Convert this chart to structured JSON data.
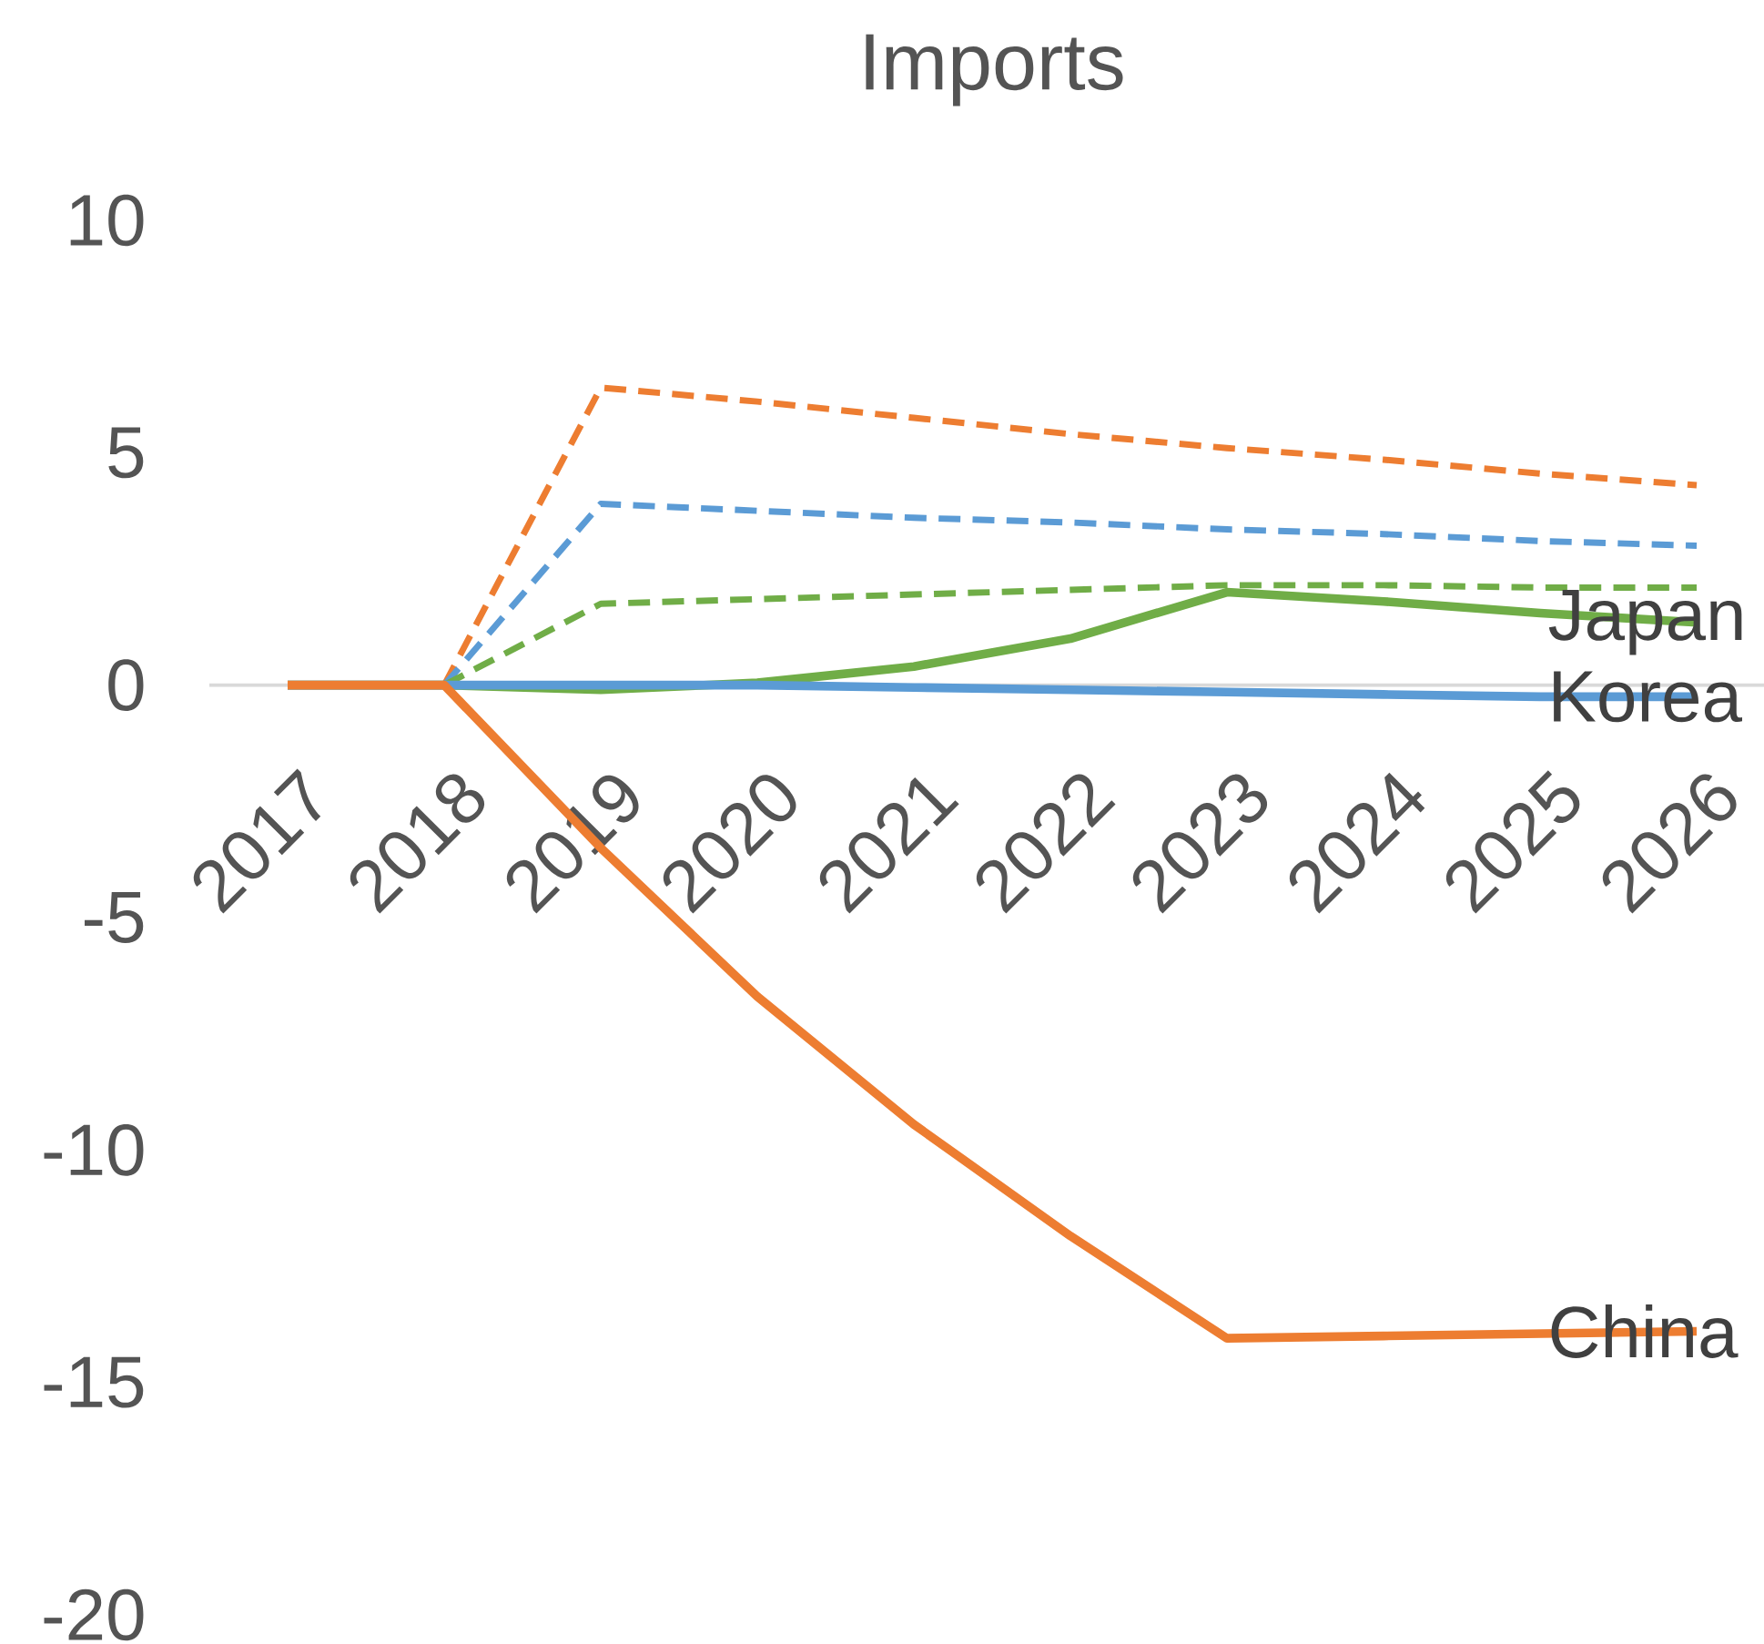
{
  "chart_data": {
    "type": "line",
    "title": "Imports",
    "categories": [
      "2017",
      "2018",
      "2019",
      "2020",
      "2021",
      "2022",
      "2023",
      "2024",
      "2025",
      "2026"
    ],
    "ylim": [
      -20,
      10
    ],
    "yticks": [
      -20,
      -15,
      -10,
      -5,
      0,
      5,
      10
    ],
    "series": [
      {
        "color": "#ed7d31",
        "line_style": "dashed",
        "values": [
          null,
          0,
          6.4,
          6.1,
          5.75,
          5.4,
          5.1,
          4.85,
          4.55,
          4.3
        ]
      },
      {
        "color": "#5b9bd5",
        "line_style": "dashed",
        "values": [
          null,
          0,
          3.9,
          3.75,
          3.6,
          3.5,
          3.35,
          3.25,
          3.1,
          3.0
        ]
      },
      {
        "color": "#70ad47",
        "line_style": "dashed",
        "values": [
          null,
          0,
          1.75,
          1.85,
          1.95,
          2.05,
          2.15,
          2.15,
          2.1,
          2.1
        ]
      },
      {
        "name": "Japan",
        "color": "#70ad47",
        "line_style": "solid",
        "values": [
          0,
          0,
          -0.1,
          0.05,
          0.4,
          1.0,
          2.0,
          1.8,
          1.55,
          1.35
        ]
      },
      {
        "name": "Korea",
        "color": "#5b9bd5",
        "line_style": "solid",
        "values": [
          0,
          0,
          0,
          0,
          -0.05,
          -0.1,
          -0.15,
          -0.2,
          -0.25,
          -0.25
        ]
      },
      {
        "name": "China",
        "color": "#ed7d31",
        "line_style": "solid",
        "values": [
          0,
          0,
          -3.5,
          -6.7,
          -9.45,
          -11.85,
          -14.05,
          -14.0,
          -13.95,
          -13.9
        ]
      }
    ]
  }
}
